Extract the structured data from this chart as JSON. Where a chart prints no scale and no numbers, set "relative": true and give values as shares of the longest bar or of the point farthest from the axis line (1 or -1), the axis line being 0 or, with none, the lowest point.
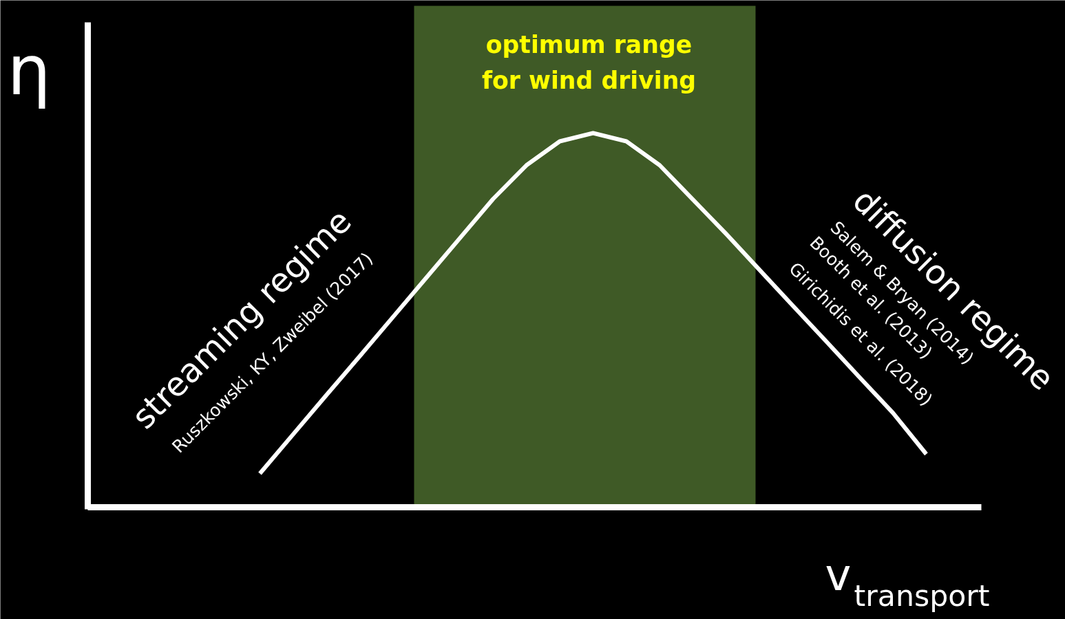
{
  "chart_data": {
    "type": "line",
    "relative": true,
    "xlabel": "v$_{transport}$",
    "ylabel": "η",
    "categories": [
      null,
      null,
      null,
      null,
      null,
      null,
      null,
      null,
      null,
      null,
      null,
      null,
      null,
      null,
      null,
      null,
      null,
      null,
      null,
      null,
      null
    ],
    "series": [
      {
        "color": "#ffffff",
        "values": [
          0.09,
          0.195,
          0.3,
          0.404,
          0.509,
          0.614,
          0.719,
          0.824,
          0.914,
          0.978,
          1.0,
          0.978,
          0.914,
          0.822,
          0.73,
          0.634,
          0.538,
          0.443,
          0.347,
          0.252,
          0.142
        ]
      }
    ],
    "annotations": [
      "optimum range\nfor wind driving",
      "streaming regime",
      "Ruszkowski, KY, Zweibel (2017)",
      "diffusion regime",
      "Salem & Bryan (2014)",
      "Booth et al. (2013)",
      "Girichidis et al. (2018)"
    ],
    "grid": false,
    "tick_labels": false,
    "line_style": "solid",
    "marker": "none"
  }
}
